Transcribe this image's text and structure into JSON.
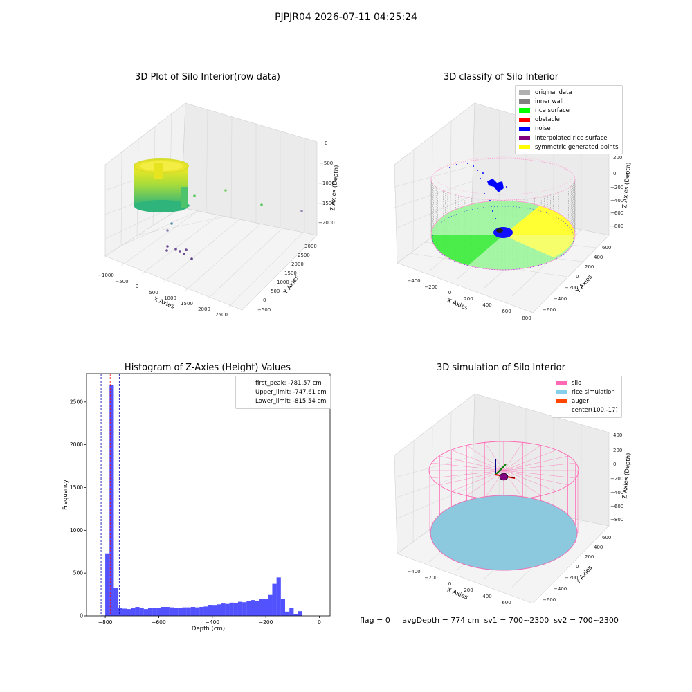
{
  "suptitle": "PJPJR04 2026-07-11 04:25:24",
  "status": {
    "flag": "flag = 0",
    "avg_depth": "avgDepth = 774 cm",
    "sv1": "sv1 = 700~2300",
    "sv2": "sv2 = 700~2300"
  },
  "panel_raw": {
    "title": "3D Plot of Silo Interior(row data)",
    "xlabel": "X Axies",
    "ylabel": "Y Axies",
    "zlabel": "Z Axies (Depth)",
    "xticks": [
      "−1000",
      "−500",
      "0",
      "500",
      "1000",
      "1500",
      "2000",
      "2500"
    ],
    "yticks": [
      "−500",
      "0",
      "500",
      "1000",
      "1500",
      "2000",
      "2500",
      "3000"
    ],
    "zticks": [
      "0",
      "−500",
      "−1000",
      "−1500",
      "−2000"
    ]
  },
  "panel_classify": {
    "title": "3D classify of Silo Interior",
    "xlabel": "X Axies",
    "ylabel": "Y Axies",
    "zlabel": "Z Axies (Depth)",
    "xticks": [
      "−400",
      "−200",
      "0",
      "200",
      "400",
      "600",
      "800"
    ],
    "yticks": [
      "−600",
      "−400",
      "−200",
      "0",
      "200",
      "400",
      "600"
    ],
    "zticks": [
      "200",
      "0",
      "−200",
      "−400",
      "−600",
      "−800"
    ],
    "legend": [
      {
        "label": "original data",
        "color": "#b0b0b0"
      },
      {
        "label": "inner wall",
        "color": "#808080"
      },
      {
        "label": "rice surface",
        "color": "#00ff00"
      },
      {
        "label": "obstacle",
        "color": "#ff0000"
      },
      {
        "label": "noise",
        "color": "#0000ff"
      },
      {
        "label": "interpolated rice surface",
        "color": "#800080"
      },
      {
        "label": "symmetric generated points",
        "color": "#ffff00"
      }
    ]
  },
  "panel_sim": {
    "title": "3D simulation of Silo Interior",
    "xlabel": "X Axies",
    "ylabel": "Y Axies",
    "zlabel": "Z Axies (Depth)",
    "xticks": [
      "−400",
      "−200",
      "0",
      "200",
      "400",
      "600"
    ],
    "yticks": [
      "−600",
      "−400",
      "−200",
      "0",
      "200",
      "400",
      "600"
    ],
    "zticks": [
      "400",
      "200",
      "0",
      "−200",
      "−400",
      "−600",
      "−800"
    ],
    "legend": [
      {
        "label": "silo",
        "color": "#ff69b4"
      },
      {
        "label": "rice simulation",
        "color": "#87ceeb"
      },
      {
        "label": "auger",
        "color": "#ff4500"
      },
      {
        "label": "center(100,-17)",
        "color": ""
      }
    ]
  },
  "chart_data": {
    "type": "bar",
    "title": "Histogram of Z-Axies (Height) Values",
    "xlabel": "Depth (cm)",
    "ylabel": "Frequency",
    "xlim": [
      -870,
      40
    ],
    "ylim": [
      0,
      2830
    ],
    "xticks": [
      -800,
      -600,
      -400,
      -200,
      0
    ],
    "yticks": [
      0,
      500,
      1000,
      1500,
      2000,
      2500
    ],
    "bar_color": "#0000ff",
    "bin_width": 16,
    "bin_start": -816,
    "values": [
      5,
      730,
      2700,
      330,
      95,
      85,
      80,
      90,
      105,
      95,
      80,
      90,
      95,
      90,
      105,
      105,
      100,
      95,
      95,
      100,
      100,
      105,
      100,
      105,
      110,
      125,
      120,
      135,
      145,
      140,
      155,
      150,
      165,
      160,
      170,
      185,
      175,
      200,
      195,
      245,
      375,
      450,
      200,
      50,
      90,
      20,
      55
    ],
    "lines": [
      {
        "label": "first_peak: -781.57 cm",
        "x": -781.57,
        "color": "#ff0000"
      },
      {
        "label": "Upper_limit: -747.61 cm",
        "x": -747.61,
        "color": "#0000aa"
      },
      {
        "label": "Lower_limit: -815.54 cm",
        "x": -815.54,
        "color": "#0000aa"
      }
    ],
    "legend_position": "top-right"
  }
}
